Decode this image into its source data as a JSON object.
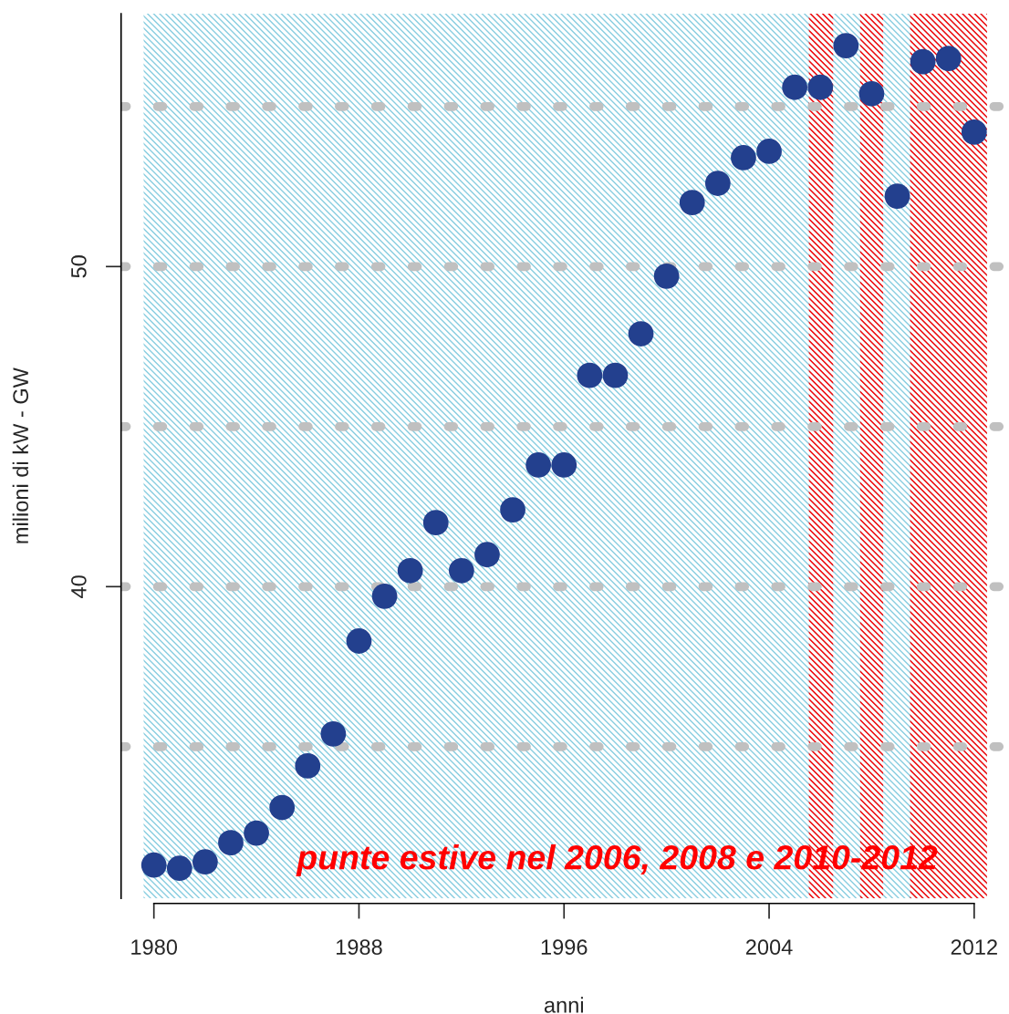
{
  "chart_data": {
    "type": "scatter",
    "xlabel": "anni",
    "ylabel": "milioni di kW - GW",
    "x": [
      1980,
      1981,
      1982,
      1983,
      1984,
      1985,
      1986,
      1987,
      1988,
      1989,
      1990,
      1991,
      1992,
      1993,
      1994,
      1995,
      1996,
      1997,
      1998,
      1999,
      2000,
      2001,
      2002,
      2003,
      2004,
      2005,
      2006,
      2007,
      2008,
      2009,
      2010,
      2011,
      2012
    ],
    "series": [
      {
        "color": "#23408e",
        "values": [
          31.3,
          31.2,
          31.4,
          32.0,
          32.3,
          33.1,
          34.4,
          35.4,
          38.3,
          39.7,
          40.5,
          42.0,
          40.5,
          41.0,
          42.4,
          43.8,
          43.8,
          46.6,
          46.6,
          47.9,
          49.7,
          52.0,
          52.6,
          53.4,
          53.6,
          55.6,
          55.6,
          56.9,
          55.4,
          52.2,
          56.4,
          56.5,
          54.2
        ]
      }
    ],
    "marker": "circle",
    "xlim": [
      1978.72,
      2013.28
    ],
    "ylim": [
      30.26,
      57.9
    ],
    "xticks": [
      1980,
      1988,
      1996,
      2004,
      2012
    ],
    "yticks": [
      40,
      50
    ],
    "ref_lines": [
      {
        "axis": "y",
        "value": 35,
        "color": "#c0c0c0",
        "line_style": "dashed"
      },
      {
        "axis": "y",
        "value": 40,
        "color": "#c0c0c0",
        "line_style": "dashed"
      },
      {
        "axis": "y",
        "value": 45,
        "color": "#c0c0c0",
        "line_style": "dashed"
      },
      {
        "axis": "y",
        "value": 50,
        "color": "#c0c0c0",
        "line_style": "dashed"
      },
      {
        "axis": "y",
        "value": 55,
        "color": "#c0c0c0",
        "line_style": "dashed"
      }
    ],
    "bands": [
      {
        "axis": "x",
        "from": 1979.6,
        "to": 2012.5,
        "color": "#87cde0"
      },
      {
        "axis": "x",
        "from": 2005.55,
        "to": 2006.5,
        "color": "#ff0000"
      },
      {
        "axis": "x",
        "from": 2007.55,
        "to": 2008.45,
        "color": "#ff0000"
      },
      {
        "axis": "x",
        "from": 2009.5,
        "to": 2012.5,
        "color": "#ff0000"
      }
    ],
    "annotations": [
      "punte estive nel 2006, 2008 e 2010-2012"
    ]
  }
}
